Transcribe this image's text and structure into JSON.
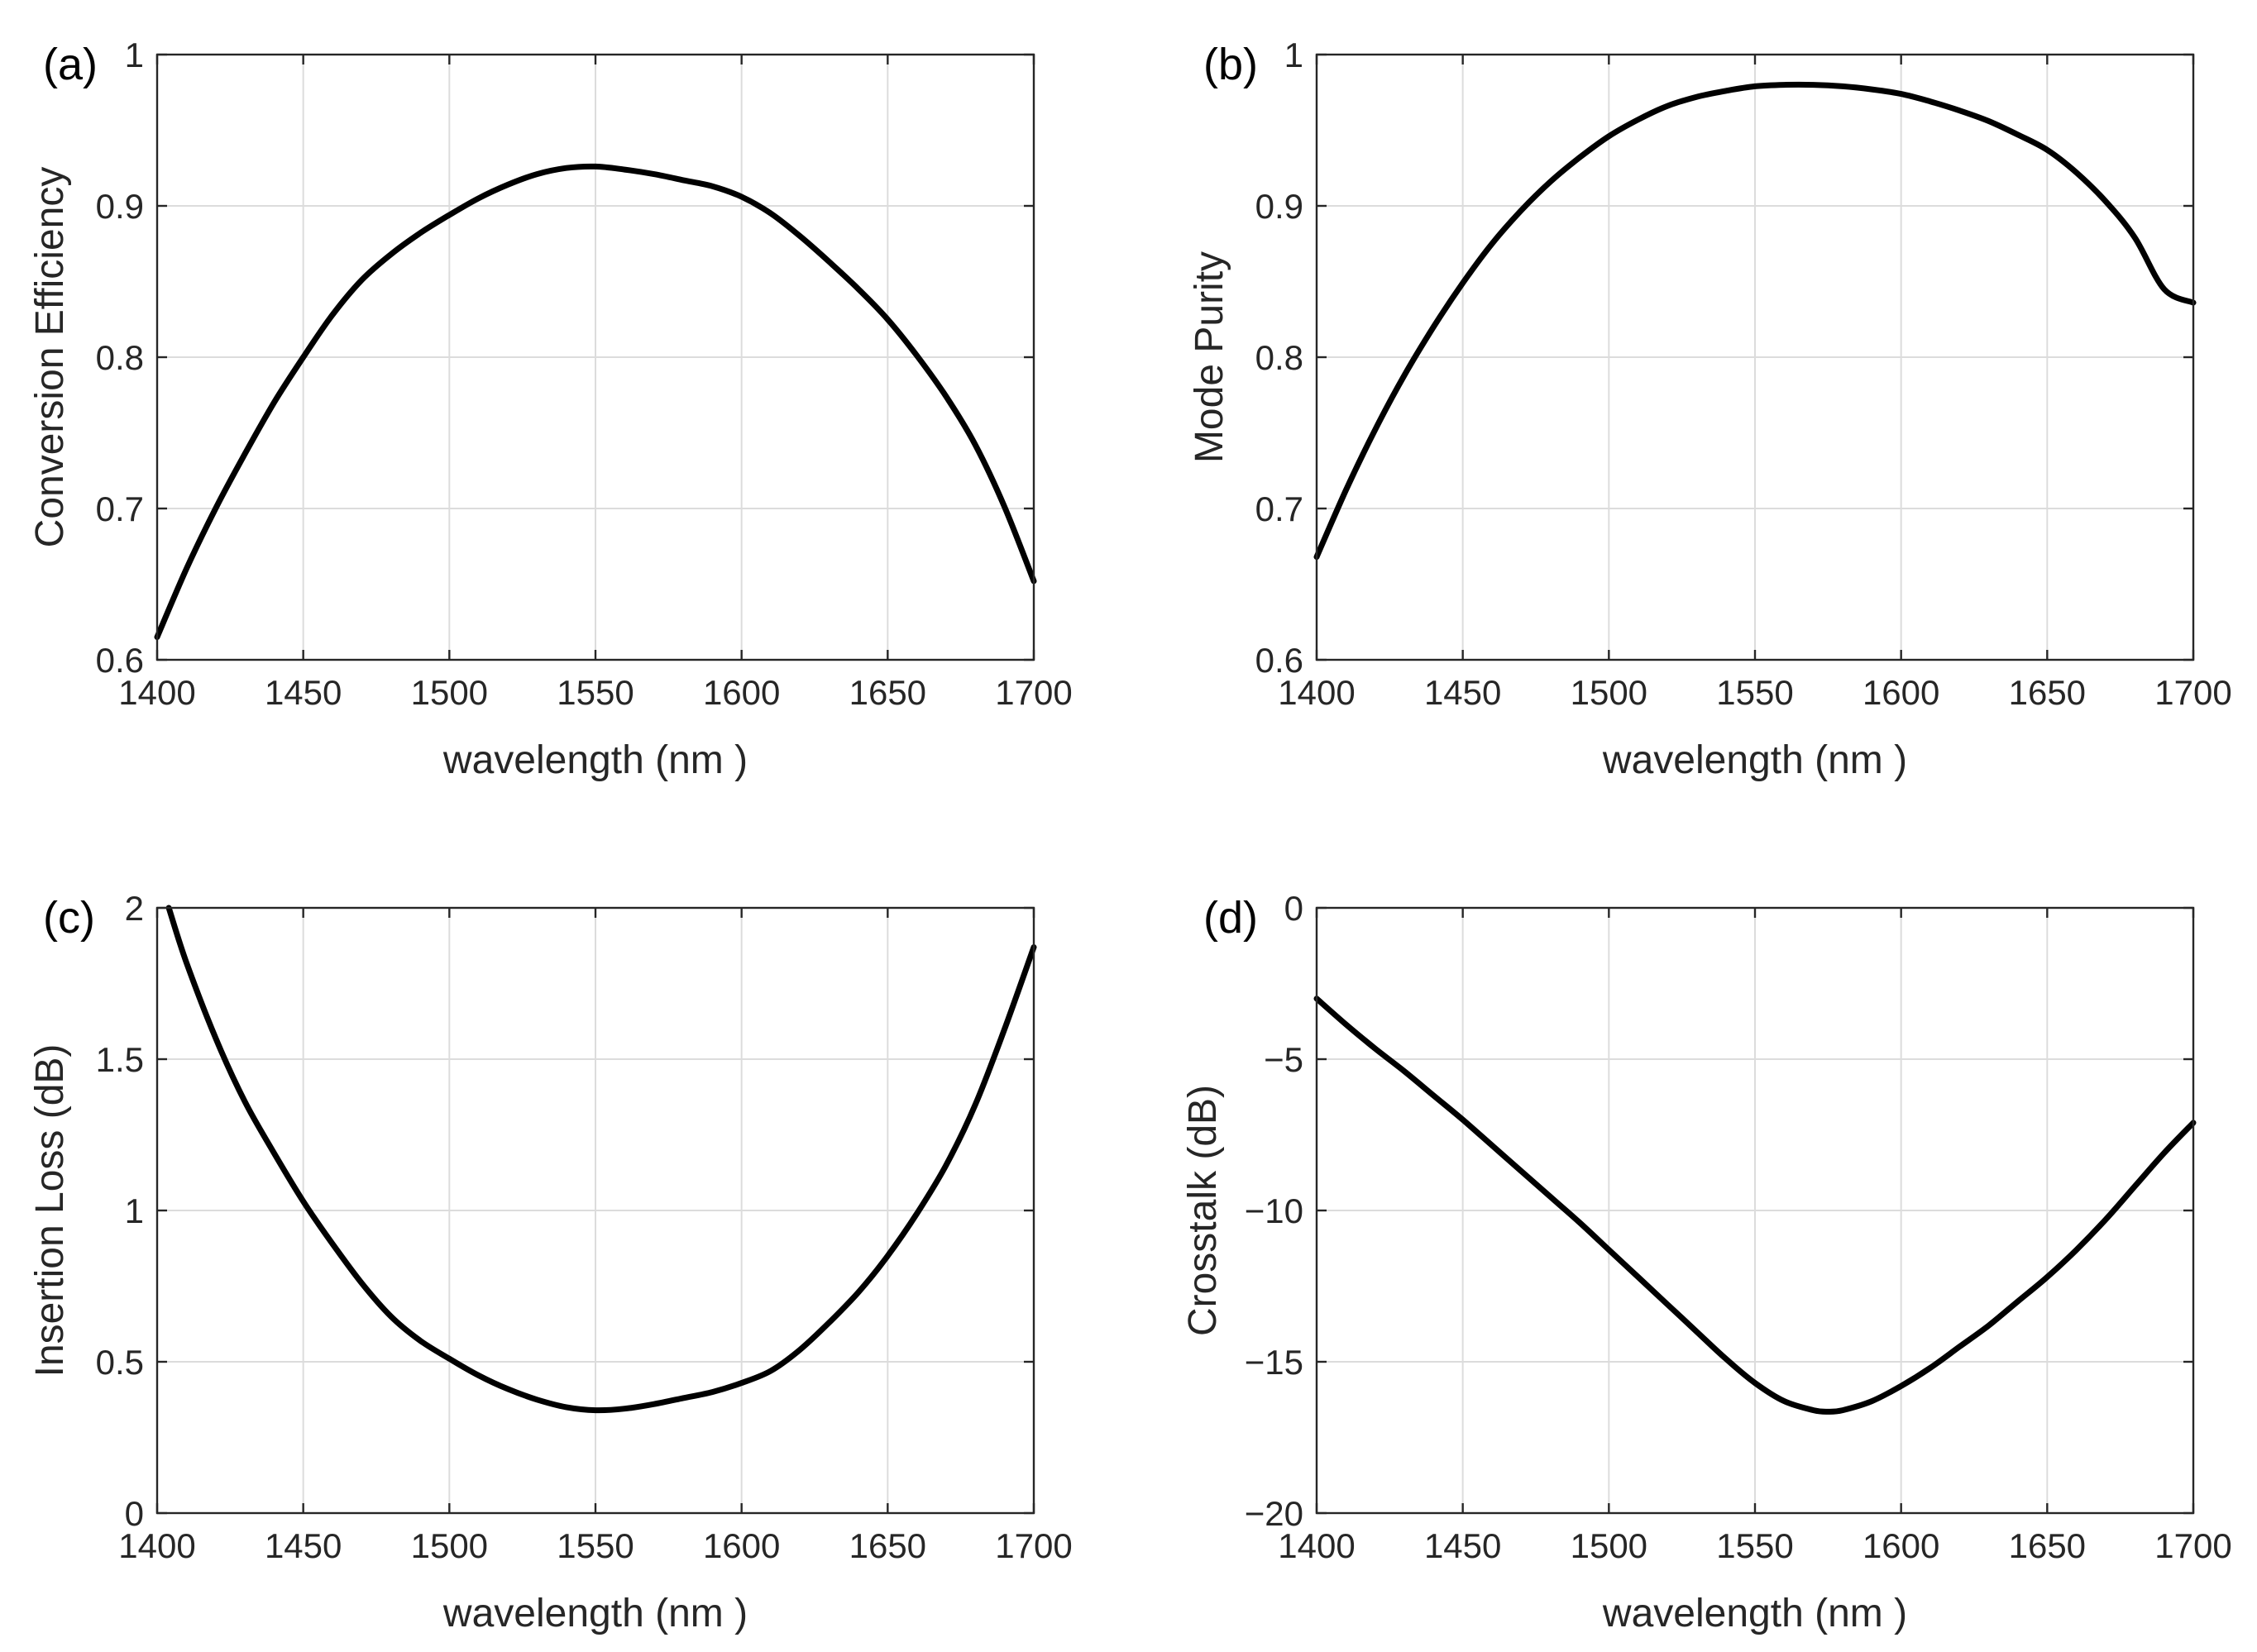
{
  "chart_data": [
    {
      "type": "line",
      "panel_label": "(a)",
      "title": "",
      "xlabel": "wavelength  (nm )",
      "ylabel": "Conversion  Efficiency",
      "xlim": [
        1400,
        1700
      ],
      "ylim": [
        0.6,
        1
      ],
      "xticks": [
        1400,
        1450,
        1500,
        1550,
        1600,
        1650,
        1700
      ],
      "yticks": [
        0.6,
        0.7,
        0.8,
        0.9,
        1
      ],
      "xtick_labels": [
        "1400",
        "1450",
        "1500",
        "1550",
        "1600",
        "1650",
        "1700"
      ],
      "ytick_labels": [
        "0.6",
        "0.7",
        "0.8",
        "0.9",
        "1"
      ],
      "grid": true,
      "series": [
        {
          "name": "Conversion Efficiency",
          "color": "#000000",
          "x": [
            1400,
            1410,
            1420,
            1430,
            1440,
            1450,
            1460,
            1470,
            1480,
            1490,
            1500,
            1510,
            1520,
            1530,
            1540,
            1550,
            1560,
            1570,
            1580,
            1590,
            1600,
            1610,
            1620,
            1630,
            1640,
            1650,
            1660,
            1670,
            1680,
            1690,
            1700
          ],
          "y": [
            0.615,
            0.66,
            0.7,
            0.736,
            0.77,
            0.8,
            0.828,
            0.851,
            0.868,
            0.882,
            0.894,
            0.905,
            0.914,
            0.921,
            0.925,
            0.926,
            0.924,
            0.921,
            0.917,
            0.913,
            0.906,
            0.895,
            0.88,
            0.863,
            0.845,
            0.825,
            0.801,
            0.774,
            0.742,
            0.701,
            0.652
          ]
        }
      ]
    },
    {
      "type": "line",
      "panel_label": "(b)",
      "title": "",
      "xlabel": "wavelength  (nm )",
      "ylabel": "Mode Purity",
      "xlim": [
        1400,
        1700
      ],
      "ylim": [
        0.6,
        1
      ],
      "xticks": [
        1400,
        1450,
        1500,
        1550,
        1600,
        1650,
        1700
      ],
      "yticks": [
        0.6,
        0.7,
        0.8,
        0.9,
        1
      ],
      "xtick_labels": [
        "1400",
        "1450",
        "1500",
        "1550",
        "1600",
        "1650",
        "1700"
      ],
      "ytick_labels": [
        "0.6",
        "0.7",
        "0.8",
        "0.9",
        "1"
      ],
      "grid": true,
      "series": [
        {
          "name": "Mode Purity",
          "color": "#000000",
          "x": [
            1400,
            1410,
            1420,
            1430,
            1440,
            1450,
            1460,
            1470,
            1480,
            1490,
            1500,
            1510,
            1520,
            1530,
            1540,
            1550,
            1560,
            1570,
            1580,
            1590,
            1600,
            1610,
            1620,
            1630,
            1640,
            1650,
            1660,
            1670,
            1680,
            1690,
            1700
          ],
          "y": [
            0.668,
            0.712,
            0.752,
            0.788,
            0.82,
            0.849,
            0.875,
            0.897,
            0.916,
            0.932,
            0.946,
            0.957,
            0.966,
            0.972,
            0.976,
            0.979,
            0.98,
            0.98,
            0.979,
            0.977,
            0.974,
            0.969,
            0.963,
            0.956,
            0.947,
            0.937,
            0.922,
            0.903,
            0.879,
            0.845,
            0.836
          ]
        }
      ]
    },
    {
      "type": "line",
      "panel_label": "(c)",
      "title": "",
      "xlabel": "wavelength  (nm )",
      "ylabel": "Insertion Loss (dB)",
      "xlim": [
        1400,
        1700
      ],
      "ylim": [
        0,
        2
      ],
      "xticks": [
        1400,
        1450,
        1500,
        1550,
        1600,
        1650,
        1700
      ],
      "yticks": [
        0,
        0.5,
        1,
        1.5,
        2
      ],
      "xtick_labels": [
        "1400",
        "1450",
        "1500",
        "1550",
        "1600",
        "1650",
        "1700"
      ],
      "ytick_labels": [
        "0",
        "0.5",
        "1",
        "1.5",
        "2"
      ],
      "grid": true,
      "series": [
        {
          "name": "Insertion Loss",
          "color": "#000000",
          "x": [
            1404,
            1410,
            1420,
            1430,
            1440,
            1450,
            1460,
            1470,
            1480,
            1490,
            1500,
            1510,
            1520,
            1530,
            1540,
            1550,
            1560,
            1570,
            1580,
            1590,
            1600,
            1610,
            1620,
            1630,
            1640,
            1650,
            1660,
            1670,
            1680,
            1690,
            1700
          ],
          "y": [
            2.0,
            1.82,
            1.57,
            1.36,
            1.19,
            1.03,
            0.89,
            0.76,
            0.65,
            0.57,
            0.51,
            0.455,
            0.41,
            0.375,
            0.35,
            0.34,
            0.345,
            0.36,
            0.38,
            0.4,
            0.43,
            0.47,
            0.54,
            0.63,
            0.73,
            0.85,
            0.99,
            1.15,
            1.35,
            1.6,
            1.87
          ]
        }
      ]
    },
    {
      "type": "line",
      "panel_label": "(d)",
      "title": "",
      "xlabel": "wavelength  (nm )",
      "ylabel": "Crosstalk (dB)",
      "xlim": [
        1400,
        1700
      ],
      "ylim": [
        -20,
        0
      ],
      "xticks": [
        1400,
        1450,
        1500,
        1550,
        1600,
        1650,
        1700
      ],
      "yticks": [
        -20,
        -15,
        -10,
        -5,
        0
      ],
      "xtick_labels": [
        "1400",
        "1450",
        "1500",
        "1550",
        "1600",
        "1650",
        "1700"
      ],
      "ytick_labels": [
        "-20",
        "-15",
        "-10",
        "-5",
        "0"
      ],
      "grid": true,
      "series": [
        {
          "name": "Crosstalk",
          "color": "#000000",
          "x": [
            1400,
            1410,
            1420,
            1430,
            1440,
            1450,
            1460,
            1470,
            1480,
            1490,
            1500,
            1510,
            1520,
            1530,
            1540,
            1550,
            1560,
            1570,
            1575,
            1580,
            1590,
            1600,
            1610,
            1620,
            1630,
            1640,
            1650,
            1660,
            1670,
            1680,
            1690,
            1700
          ],
          "y": [
            -3.0,
            -3.85,
            -4.65,
            -5.4,
            -6.2,
            -7.0,
            -7.85,
            -8.7,
            -9.55,
            -10.4,
            -11.3,
            -12.2,
            -13.1,
            -14.0,
            -14.9,
            -15.7,
            -16.3,
            -16.6,
            -16.65,
            -16.6,
            -16.3,
            -15.8,
            -15.2,
            -14.5,
            -13.8,
            -13.0,
            -12.2,
            -11.3,
            -10.3,
            -9.2,
            -8.1,
            -7.1
          ]
        }
      ]
    }
  ]
}
